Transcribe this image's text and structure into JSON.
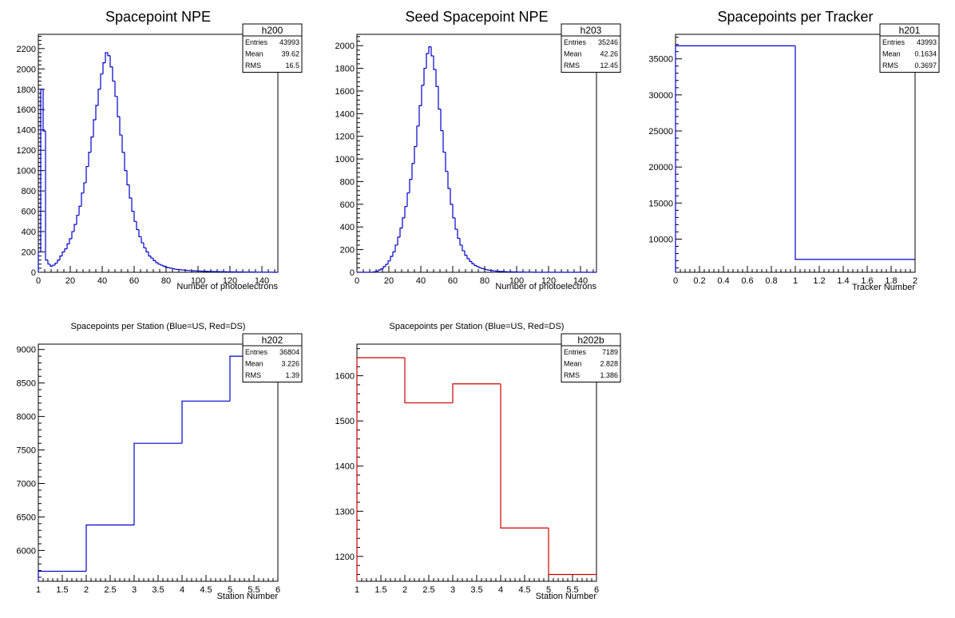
{
  "chart_data": [
    {
      "type": "histogram",
      "hist_name": "h200",
      "title": "Spacepoint NPE",
      "xlabel": "Number of photoelectrons",
      "ylabel": "",
      "xlim": [
        0,
        150
      ],
      "ylim": [
        0,
        2340
      ],
      "xticks": [
        0,
        20,
        40,
        60,
        80,
        100,
        120,
        140
      ],
      "yticks": [
        0,
        200,
        400,
        600,
        800,
        1000,
        1200,
        1400,
        1600,
        1800,
        2000,
        2200
      ],
      "line_color": "#0000cc",
      "bin_width": 1.5,
      "bin_start": 0,
      "values": [
        200,
        1800,
        1390,
        120,
        80,
        60,
        70,
        90,
        120,
        160,
        200,
        230,
        280,
        330,
        400,
        470,
        560,
        650,
        780,
        880,
        1040,
        1180,
        1330,
        1500,
        1640,
        1800,
        1950,
        2060,
        2160,
        2130,
        2020,
        1880,
        1730,
        1530,
        1350,
        1180,
        1000,
        860,
        730,
        600,
        500,
        420,
        350,
        290,
        240,
        200,
        160,
        140,
        115,
        95,
        80,
        70,
        60,
        50,
        45,
        40,
        35,
        30,
        28,
        25,
        22,
        20,
        18,
        16,
        15,
        14,
        13,
        12,
        11,
        10,
        9,
        8,
        8,
        7,
        7,
        6,
        6,
        5,
        5,
        4,
        4,
        4,
        3,
        3,
        3,
        2,
        2,
        2,
        2,
        2,
        2,
        1,
        1,
        1,
        1,
        1,
        1,
        1,
        0,
        0
      ],
      "stats": {
        "header": "h200",
        "rows": [
          {
            "label": "Entries",
            "value": "43993"
          },
          {
            "label": "Mean",
            "value": "39.62"
          },
          {
            "label": "RMS",
            "value": "16.5"
          }
        ]
      }
    },
    {
      "type": "histogram",
      "hist_name": "h203",
      "title": "Seed Spacepoint NPE",
      "xlabel": "Number of photoelectrons",
      "ylabel": "",
      "xlim": [
        0,
        150
      ],
      "ylim": [
        0,
        2100
      ],
      "xticks": [
        0,
        20,
        40,
        60,
        80,
        100,
        120,
        140
      ],
      "yticks": [
        0,
        200,
        400,
        600,
        800,
        1000,
        1200,
        1400,
        1600,
        1800,
        2000
      ],
      "line_color": "#0000cc",
      "bin_width": 1.5,
      "bin_start": 0,
      "values": [
        0,
        0,
        0,
        0,
        0,
        0,
        0,
        5,
        10,
        20,
        30,
        50,
        70,
        100,
        140,
        180,
        240,
        310,
        390,
        480,
        580,
        700,
        820,
        960,
        1110,
        1290,
        1470,
        1650,
        1800,
        1930,
        1990,
        1910,
        1790,
        1640,
        1440,
        1250,
        1060,
        890,
        740,
        600,
        480,
        380,
        300,
        240,
        190,
        150,
        120,
        95,
        75,
        60,
        50,
        40,
        33,
        27,
        22,
        18,
        15,
        12,
        10,
        8,
        7,
        6,
        5,
        4,
        4,
        3,
        3,
        2,
        2,
        2,
        1,
        1,
        1,
        1,
        0,
        0,
        0,
        0,
        0,
        0,
        0,
        0,
        0,
        0,
        0,
        0,
        0,
        0,
        0,
        0,
        0,
        0,
        0,
        0,
        0,
        0,
        0,
        0,
        0,
        0
      ],
      "stats": {
        "header": "h203",
        "rows": [
          {
            "label": "Entries",
            "value": "35246"
          },
          {
            "label": "Mean",
            "value": "42.26"
          },
          {
            "label": "RMS",
            "value": "12.45"
          }
        ]
      }
    },
    {
      "type": "histogram",
      "hist_name": "h201",
      "title": "Spacepoints per Tracker",
      "xlabel": "Tracker Number",
      "ylabel": "",
      "xlim": [
        0,
        2
      ],
      "ylim": [
        5400,
        38400
      ],
      "xticks": [
        0,
        0.2,
        0.4,
        0.6,
        0.8,
        1,
        1.2,
        1.4,
        1.6,
        1.8,
        2
      ],
      "yticks": [
        10000,
        15000,
        20000,
        25000,
        30000,
        35000
      ],
      "line_color": "#0000cc",
      "bin_width": 1,
      "bin_start": 0,
      "values": [
        36804,
        7189
      ],
      "stats": {
        "header": "h201",
        "rows": [
          {
            "label": "Entries",
            "value": "43993"
          },
          {
            "label": "Mean",
            "value": "0.1634"
          },
          {
            "label": "RMS",
            "value": "0.3697"
          }
        ]
      }
    },
    {
      "type": "histogram",
      "hist_name": "h202",
      "title": "Spacepoints per Station (Blue=US, Red=DS)",
      "xlabel": "Station Number",
      "ylabel": "",
      "xlim": [
        1,
        6
      ],
      "ylim": [
        5540,
        9080
      ],
      "xticks": [
        1,
        1.5,
        2,
        2.5,
        3,
        3.5,
        4,
        4.5,
        5,
        5.5,
        6
      ],
      "yticks": [
        6000,
        6500,
        7000,
        7500,
        8000,
        8500,
        9000
      ],
      "line_color": "#0000cc",
      "bin_width": 1,
      "bin_start": 1,
      "values": [
        5690,
        6380,
        7600,
        8230,
        8900
      ],
      "stats": {
        "header": "h202",
        "rows": [
          {
            "label": "Entries",
            "value": "36804"
          },
          {
            "label": "Mean",
            "value": "3.226"
          },
          {
            "label": "RMS",
            "value": "1.39"
          }
        ]
      }
    },
    {
      "type": "histogram",
      "hist_name": "h202b",
      "title": "Spacepoints per Station (Blue=US, Red=DS)",
      "xlabel": "Station Number",
      "ylabel": "",
      "xlim": [
        1,
        6
      ],
      "ylim": [
        1145,
        1670
      ],
      "xticks": [
        1,
        1.5,
        2,
        2.5,
        3,
        3.5,
        4,
        4.5,
        5,
        5.5,
        6
      ],
      "yticks": [
        1200,
        1300,
        1400,
        1500,
        1600
      ],
      "line_color": "#cc0000",
      "bin_width": 1,
      "bin_start": 1,
      "values": [
        1640,
        1540,
        1582,
        1263,
        1160
      ],
      "stats": {
        "header": "h202b",
        "rows": [
          {
            "label": "Entries",
            "value": "7189"
          },
          {
            "label": "Mean",
            "value": "2.828"
          },
          {
            "label": "RMS",
            "value": "1.386"
          }
        ]
      }
    }
  ]
}
